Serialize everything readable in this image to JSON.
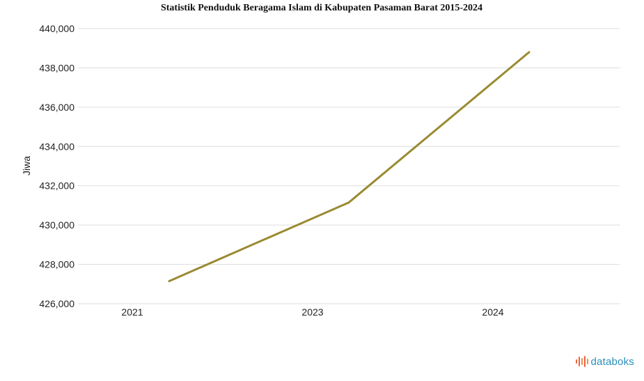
{
  "colors": {
    "series": "#9a8a30",
    "grid": "#dddddd",
    "brand": "#2a8fbd",
    "brand_mark": "#e8643c"
  },
  "brand": {
    "name": "databoks",
    "icon": "databoks-logo-icon"
  },
  "chart_data": {
    "type": "line",
    "title": "Statistik Penduduk Beragama Islam di Kabupaten Pasaman Barat 2015-2024",
    "xlabel": "",
    "ylabel": "Jiwa",
    "categories": [
      "2021",
      "2023",
      "2024"
    ],
    "series": [
      {
        "values": [
          427150,
          431150,
          438800
        ]
      }
    ],
    "ylim": [
      426000,
      440000
    ],
    "yticks": [
      426000,
      428000,
      430000,
      432000,
      434000,
      436000,
      438000,
      440000
    ],
    "ytick_labels": [
      "426,000",
      "428,000",
      "430,000",
      "432,000",
      "434,000",
      "436,000",
      "438,000",
      "440,000"
    ],
    "grid": true,
    "legend": "none"
  }
}
